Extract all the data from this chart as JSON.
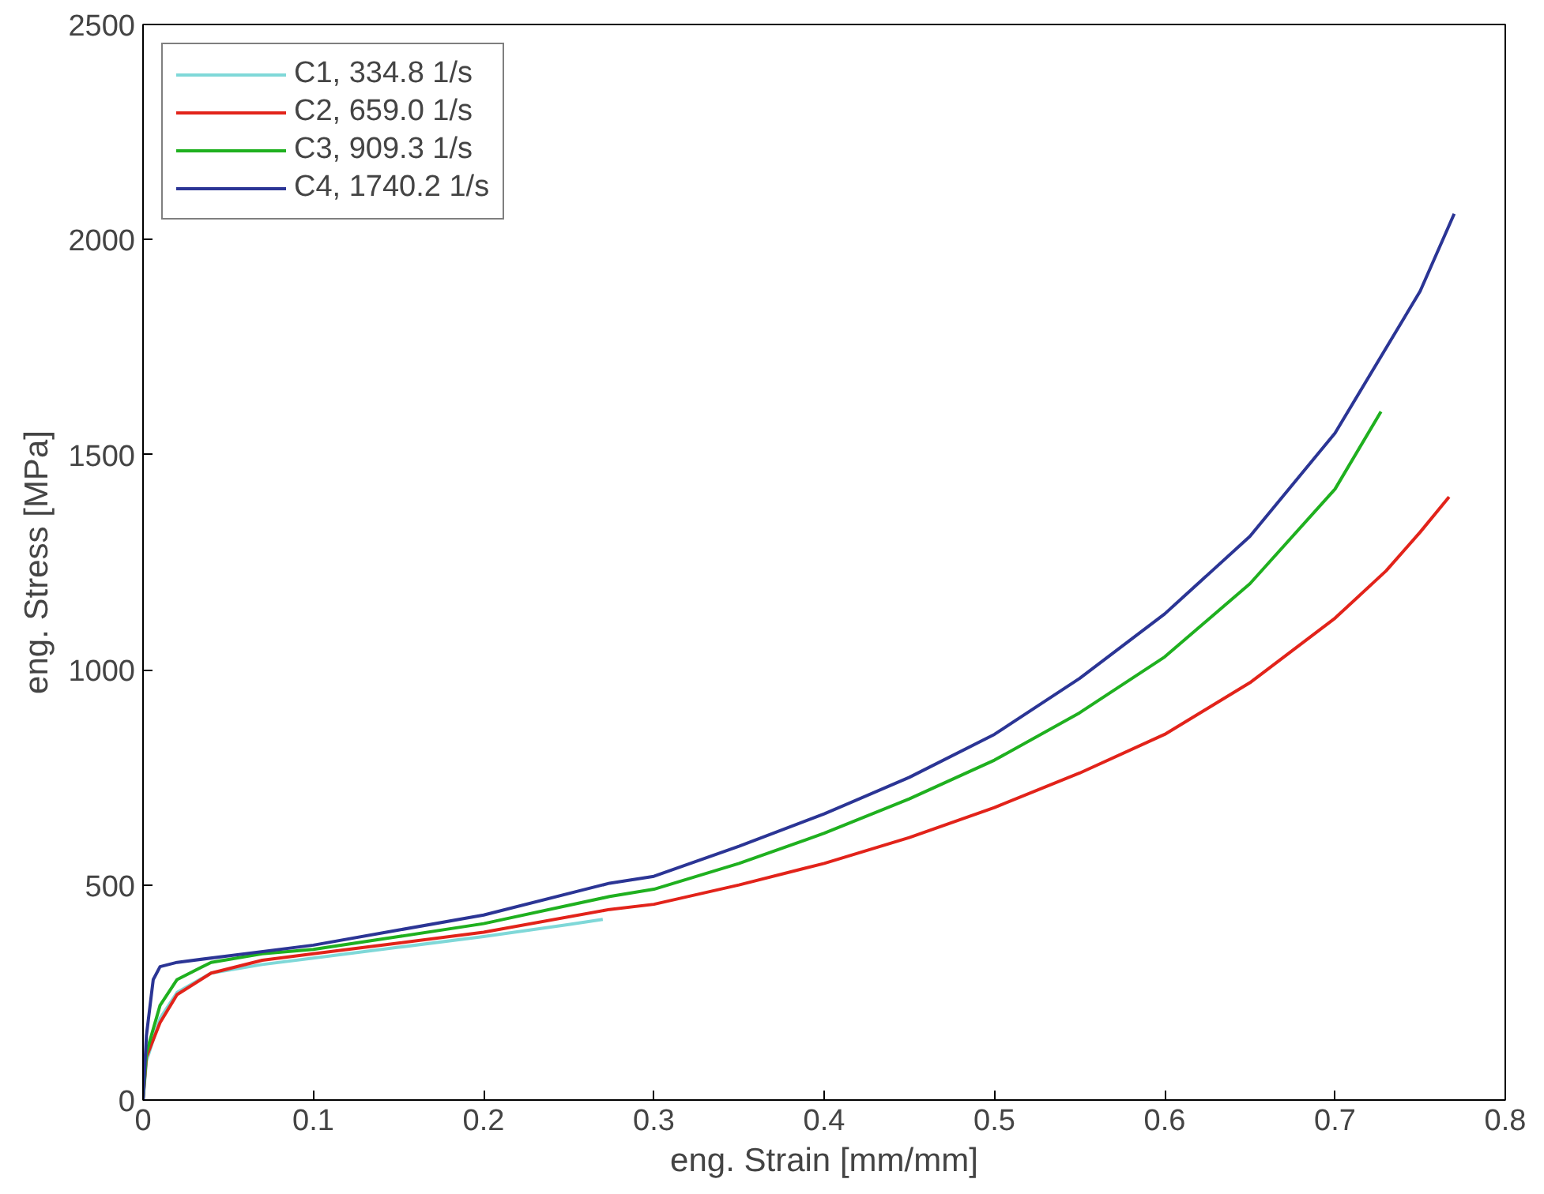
{
  "chart_data": {
    "type": "line",
    "xlabel": "eng. Strain [mm/mm]",
    "ylabel": "eng. Stress [MPa]",
    "xlim": [
      0,
      0.8
    ],
    "ylim": [
      0,
      2500
    ],
    "xticks": [
      0,
      0.1,
      0.2,
      0.3,
      0.4,
      0.5,
      0.6,
      0.7,
      0.8
    ],
    "yticks": [
      0,
      500,
      1000,
      1500,
      2000,
      2500
    ],
    "grid": false,
    "legend": "top left",
    "series": [
      {
        "name": "C1, 334.8 1/s",
        "color": "#7fd8d8",
        "x": [
          0,
          0.002,
          0.01,
          0.02,
          0.04,
          0.07,
          0.1,
          0.15,
          0.2,
          0.25,
          0.27
        ],
        "values": [
          0,
          90,
          190,
          250,
          295,
          315,
          330,
          355,
          380,
          408,
          420
        ]
      },
      {
        "name": "C2, 659.0 1/s",
        "color": "#e2231a",
        "x": [
          0,
          0.002,
          0.01,
          0.02,
          0.04,
          0.07,
          0.1,
          0.15,
          0.2,
          0.274,
          0.3,
          0.35,
          0.4,
          0.45,
          0.5,
          0.55,
          0.6,
          0.65,
          0.7,
          0.73,
          0.75,
          0.767
        ],
        "values": [
          0,
          100,
          180,
          245,
          295,
          325,
          340,
          365,
          390,
          443,
          455,
          500,
          550,
          610,
          680,
          760,
          850,
          970,
          1120,
          1230,
          1320,
          1402
        ]
      },
      {
        "name": "C3, 909.3 1/s",
        "color": "#1fb01f",
        "x": [
          0,
          0.002,
          0.01,
          0.02,
          0.04,
          0.07,
          0.1,
          0.15,
          0.2,
          0.274,
          0.3,
          0.35,
          0.4,
          0.45,
          0.5,
          0.55,
          0.6,
          0.65,
          0.7,
          0.727
        ],
        "values": [
          0,
          110,
          220,
          280,
          320,
          340,
          350,
          380,
          410,
          473,
          490,
          550,
          620,
          700,
          790,
          900,
          1030,
          1200,
          1420,
          1600
        ]
      },
      {
        "name": "C4, 1740.2 1/s",
        "color": "#2b3595",
        "x": [
          0,
          0.002,
          0.006,
          0.01,
          0.02,
          0.05,
          0.1,
          0.15,
          0.2,
          0.274,
          0.3,
          0.35,
          0.4,
          0.45,
          0.5,
          0.55,
          0.6,
          0.65,
          0.7,
          0.75,
          0.77
        ],
        "values": [
          0,
          150,
          280,
          310,
          320,
          335,
          360,
          395,
          430,
          504,
          520,
          590,
          665,
          750,
          850,
          980,
          1130,
          1310,
          1550,
          1880,
          2060
        ]
      }
    ]
  }
}
